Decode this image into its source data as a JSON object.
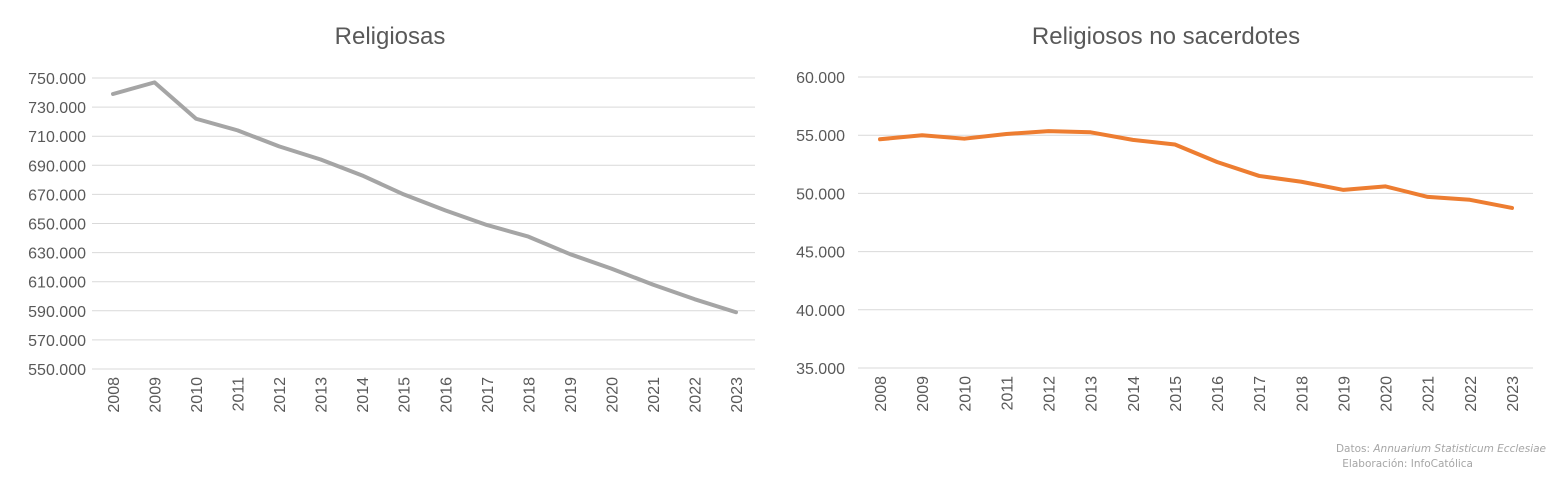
{
  "chart_data": [
    {
      "type": "line",
      "title": "Religiosas",
      "xlabel": "",
      "ylabel": "",
      "categories": [
        "2008",
        "2009",
        "2010",
        "2011",
        "2012",
        "2013",
        "2014",
        "2015",
        "2016",
        "2017",
        "2018",
        "2019",
        "2020",
        "2021",
        "2022",
        "2023"
      ],
      "values": [
        739000,
        747000,
        722000,
        714000,
        703000,
        694000,
        683000,
        670000,
        659000,
        649000,
        641000,
        629000,
        619000,
        608000,
        598000,
        589000
      ],
      "ylim": [
        550000,
        750000
      ],
      "yticks": [
        "550.000",
        "570.000",
        "590.000",
        "610.000",
        "630.000",
        "650.000",
        "670.000",
        "690.000",
        "710.000",
        "730.000",
        "750.000"
      ],
      "color": "#a5a5a5",
      "grid": true
    },
    {
      "type": "line",
      "title": "Religiosos no sacerdotes",
      "xlabel": "",
      "ylabel": "",
      "categories": [
        "2008",
        "2009",
        "2010",
        "2011",
        "2012",
        "2013",
        "2014",
        "2015",
        "2016",
        "2017",
        "2018",
        "2019",
        "2020",
        "2021",
        "2022",
        "2023"
      ],
      "values": [
        54650,
        55000,
        54700,
        55100,
        55350,
        55250,
        54600,
        54200,
        52700,
        51500,
        51000,
        50300,
        50600,
        49700,
        49450,
        48750
      ],
      "ylim": [
        35000,
        60000
      ],
      "yticks": [
        "35.000",
        "40.000",
        "45.000",
        "50.000",
        "55.000",
        "60.000"
      ],
      "color": "#ed7d31",
      "grid": true
    }
  ],
  "footer": {
    "source_label": "Datos: ",
    "source": "Annuarium Statisticum Ecclesiae",
    "credit": "Elaboración: InfoCatólica"
  }
}
